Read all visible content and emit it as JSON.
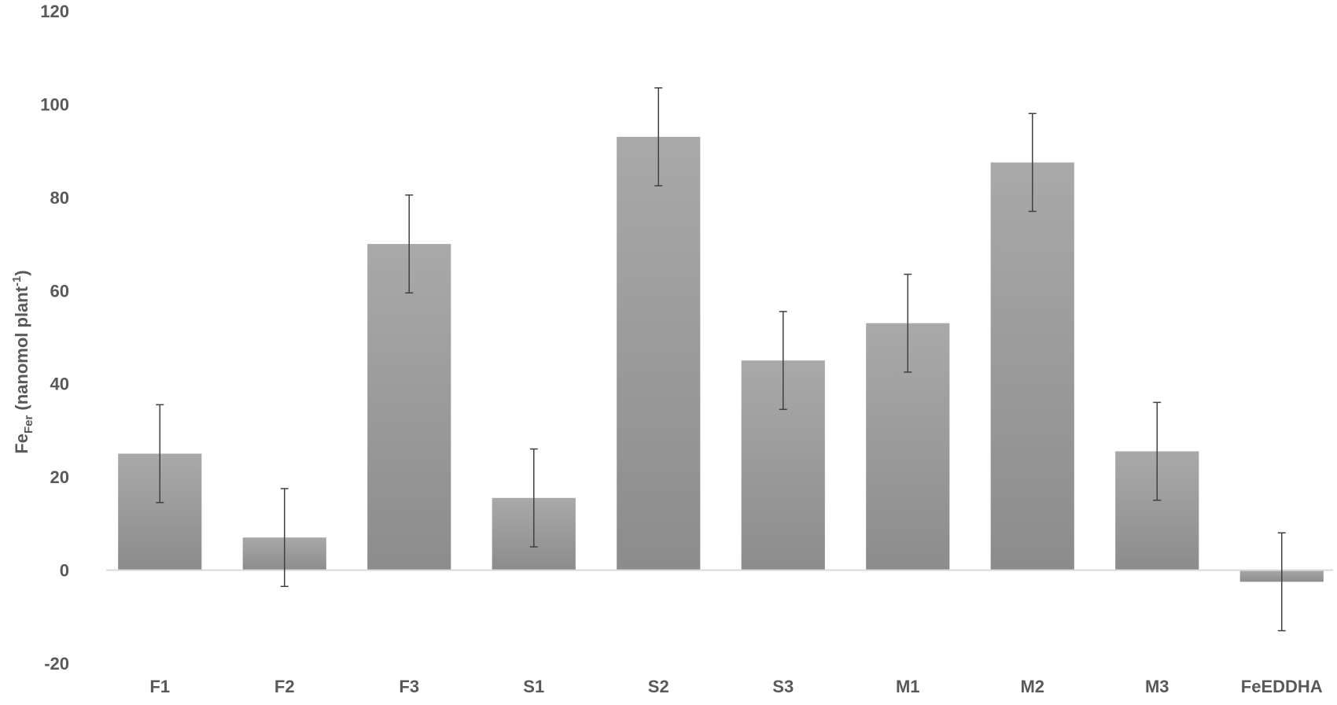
{
  "chart_data": {
    "type": "bar",
    "categories": [
      "F1",
      "F2",
      "F3",
      "S1",
      "S2",
      "S3",
      "M1",
      "M2",
      "M3",
      "FeEDDHA"
    ],
    "values": [
      25,
      7,
      70,
      15.5,
      93,
      45,
      53,
      87.5,
      25.5,
      -2.5
    ],
    "error": [
      10.5,
      10.5,
      10.5,
      10.5,
      10.5,
      10.5,
      10.5,
      10.5,
      10.5,
      10.5
    ],
    "ylabel": {
      "main": "Fe",
      "sub": "Fer",
      "rest": " (nanomol plant",
      "sup": "-1",
      "close": ")"
    },
    "xlabel": "",
    "title": "",
    "ylim": [
      -20,
      120
    ],
    "yticks": [
      -20,
      0,
      20,
      40,
      60,
      80,
      100,
      120
    ],
    "grid": false,
    "legend": "none",
    "bar_color_top": "#a6a6a6",
    "bar_color_bottom": "#8c8c8c",
    "axis_color": "#d9d9d9",
    "text_color": "#595959"
  }
}
